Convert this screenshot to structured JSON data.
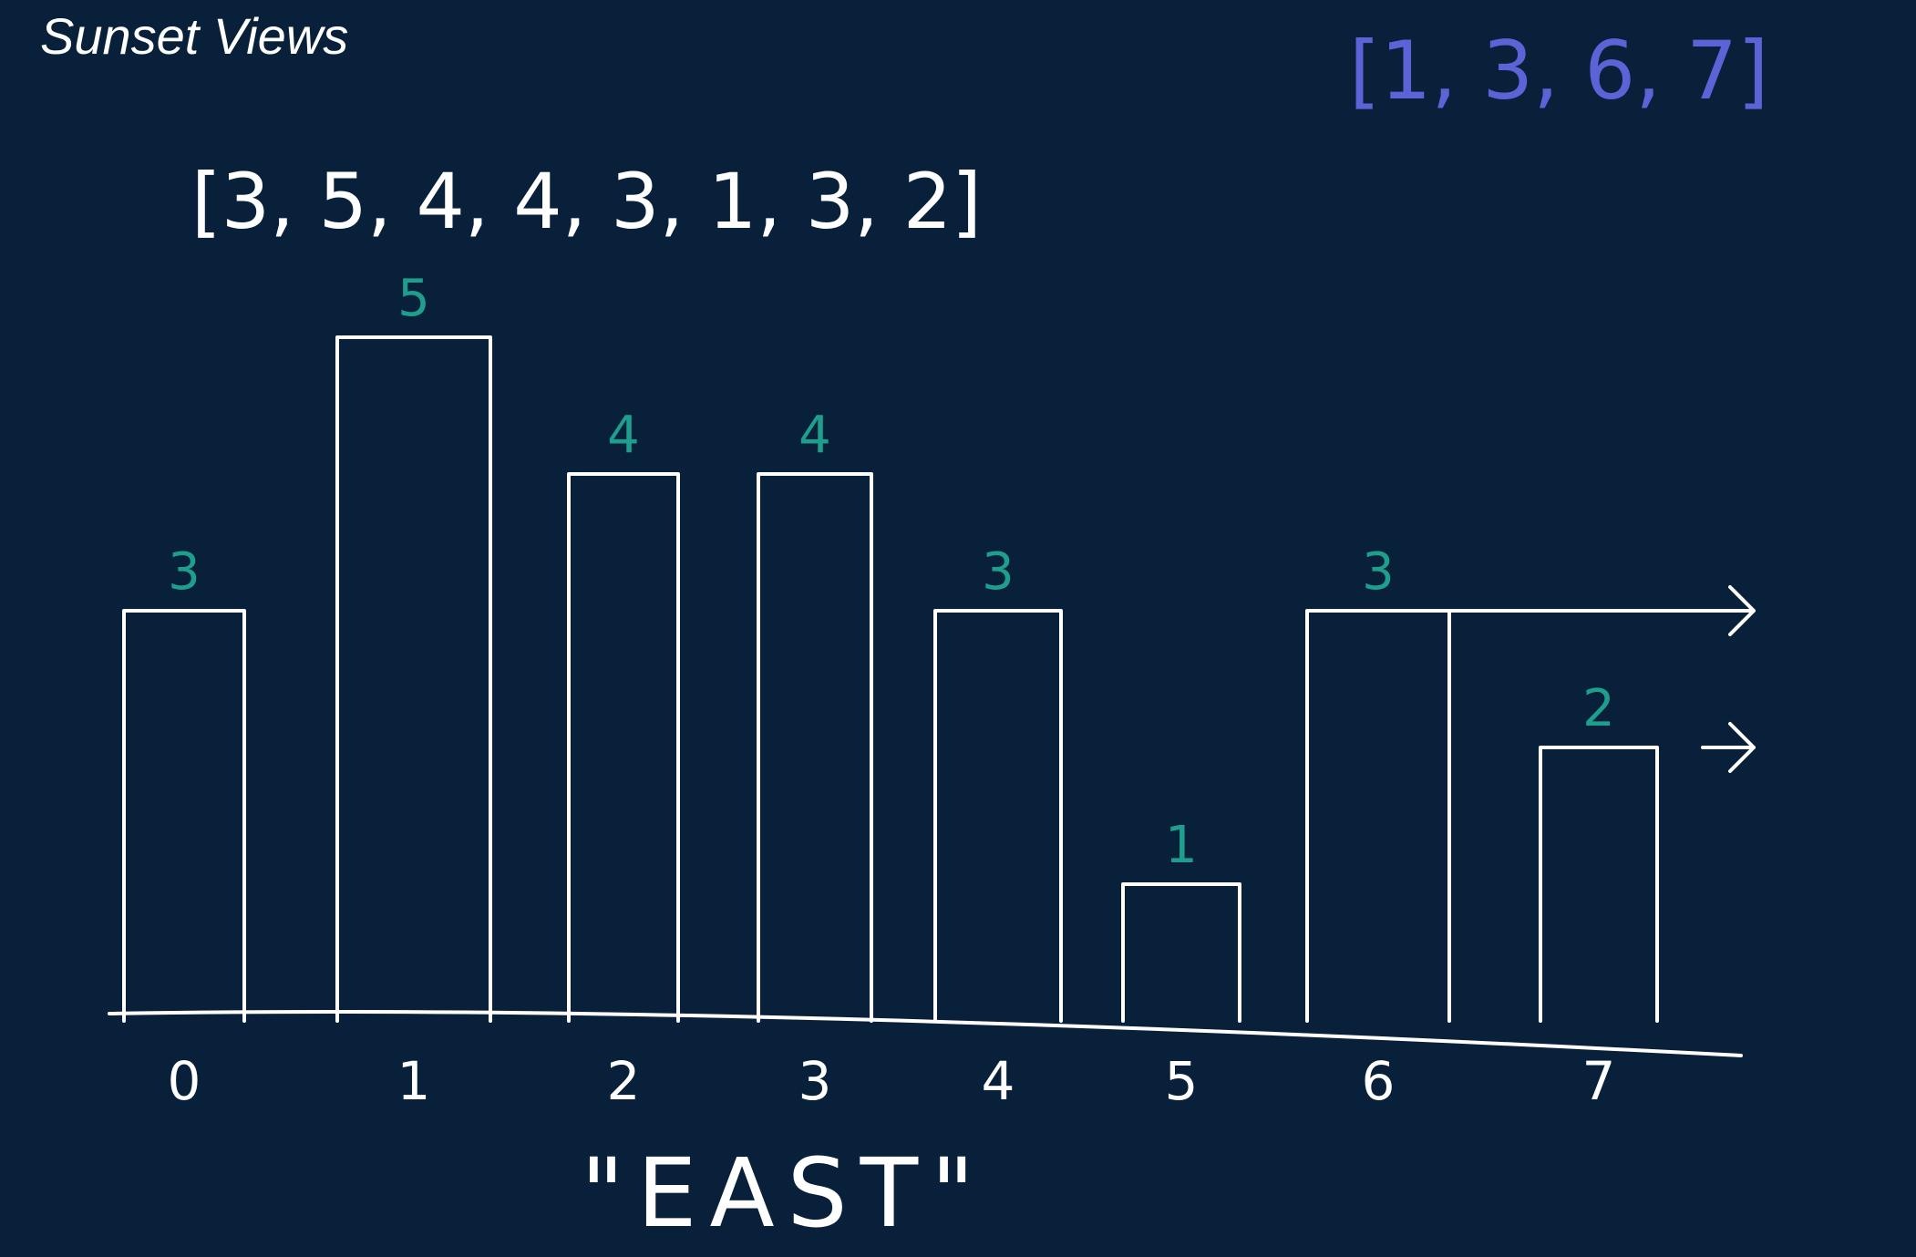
{
  "title": "Sunset Views",
  "input_array": "[3, 5, 4, 4, 3, 1, 3, 2]",
  "result_array": "[1, 3, 6, 7]",
  "direction_label": "\"EAST\"",
  "colors": {
    "background": "#08203a",
    "ink": "#ffffff",
    "height_labels": "#1e9f8e",
    "result": "#5b63d6"
  },
  "chart_data": {
    "type": "bar",
    "categories": [
      "0",
      "1",
      "2",
      "3",
      "4",
      "5",
      "6",
      "7"
    ],
    "values": [
      3,
      5,
      4,
      4,
      3,
      1,
      3,
      2
    ],
    "data_labels": [
      "3",
      "5",
      "4",
      "4",
      "3",
      "1",
      "3",
      "2"
    ],
    "ylim": [
      0,
      5.4
    ],
    "arrows_from_indices": [
      6,
      7
    ]
  }
}
